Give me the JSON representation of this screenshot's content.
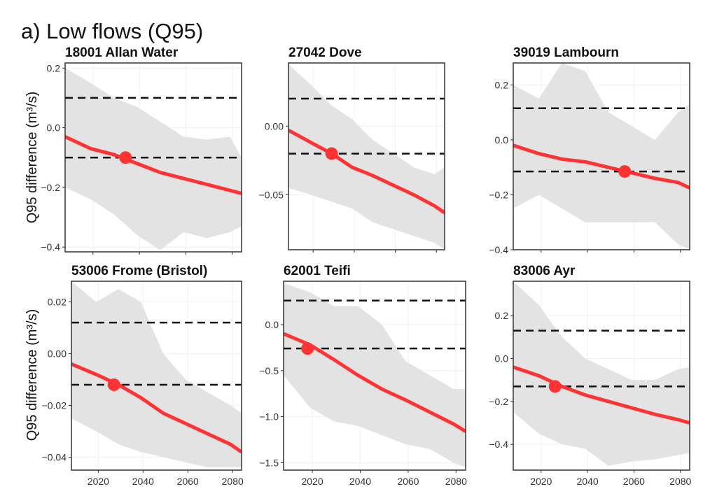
{
  "figure_title": "a) Low flows (Q95)",
  "ylabel": "Q95 difference (m³/s)",
  "colors": {
    "central_line": "#ff3333",
    "band": "#e3e3e3",
    "threshold": "#111111",
    "point": "#ff3333"
  },
  "chart_data": [
    {
      "type": "line",
      "title": "18001 Allan Water",
      "xlim": [
        2008,
        2084
      ],
      "ylim": [
        -0.416,
        0.217
      ],
      "xticks": [
        2020,
        2040,
        2060,
        2080
      ],
      "yticks": [
        0.2,
        0.0,
        -0.2,
        -0.4
      ],
      "ytick_labels": [
        "0.2",
        "0.0",
        "−0.2",
        "−0.4"
      ],
      "show_xtick_labels": false,
      "thresholds": [
        0.1,
        -0.1
      ],
      "x": [
        2008,
        2019,
        2029,
        2039,
        2049,
        2059,
        2069,
        2079,
        2084
      ],
      "central": [
        -0.03,
        -0.07,
        -0.09,
        -0.12,
        -0.15,
        -0.17,
        -0.19,
        -0.21,
        -0.22
      ],
      "band_upper": [
        0.2,
        0.15,
        0.1,
        0.07,
        0.02,
        -0.03,
        -0.04,
        -0.03,
        -0.1
      ],
      "band_lower": [
        -0.2,
        -0.24,
        -0.29,
        -0.36,
        -0.41,
        -0.35,
        -0.37,
        -0.35,
        -0.33
      ],
      "point": {
        "x": 2034,
        "y": -0.1
      }
    },
    {
      "type": "line",
      "title": "27042 Dove",
      "xlim": [
        2008,
        2084
      ],
      "ylim": [
        -0.09,
        0.046
      ],
      "xticks": [
        2020,
        2040,
        2060,
        2080
      ],
      "yticks": [
        0.0,
        -0.05
      ],
      "ytick_labels": [
        "0.00",
        "−0.05"
      ],
      "show_xtick_labels": false,
      "thresholds": [
        0.02,
        -0.02
      ],
      "x": [
        2008,
        2019,
        2029,
        2039,
        2049,
        2059,
        2069,
        2079,
        2084
      ],
      "central": [
        -0.003,
        -0.012,
        -0.02,
        -0.03,
        -0.036,
        -0.043,
        -0.05,
        -0.058,
        -0.063
      ],
      "band_upper": [
        0.045,
        0.03,
        0.015,
        0.005,
        -0.01,
        -0.02,
        -0.03,
        -0.035,
        -0.03
      ],
      "band_lower": [
        -0.045,
        -0.05,
        -0.055,
        -0.06,
        -0.07,
        -0.075,
        -0.08,
        -0.085,
        -0.09
      ],
      "point": {
        "x": 2029,
        "y": -0.02
      }
    },
    {
      "type": "line",
      "title": "39019 Lambourn",
      "xlim": [
        2008,
        2084
      ],
      "ylim": [
        -0.4,
        0.28
      ],
      "xticks": [
        2020,
        2040,
        2060,
        2080
      ],
      "yticks": [
        0.2,
        0.0,
        -0.2,
        -0.4
      ],
      "ytick_labels": [
        "0.2",
        "0.0",
        "−0.2",
        "−0.4"
      ],
      "show_xtick_labels": false,
      "thresholds": [
        0.115,
        -0.115
      ],
      "x": [
        2008,
        2019,
        2029,
        2039,
        2049,
        2059,
        2069,
        2079,
        2084
      ],
      "central": [
        -0.02,
        -0.05,
        -0.07,
        -0.08,
        -0.1,
        -0.12,
        -0.14,
        -0.155,
        -0.175
      ],
      "band_upper": [
        0.2,
        0.15,
        0.28,
        0.25,
        0.1,
        0.05,
        0.0,
        0.1,
        0.13
      ],
      "band_lower": [
        -0.25,
        -0.2,
        -0.25,
        -0.3,
        -0.3,
        -0.3,
        -0.3,
        -0.38,
        -0.4
      ],
      "point": {
        "x": 2056,
        "y": -0.115
      }
    },
    {
      "type": "line",
      "title": "53006 Frome (Bristol)",
      "xlim": [
        2008,
        2084
      ],
      "ylim": [
        -0.045,
        0.028
      ],
      "xticks": [
        2020,
        2040,
        2060,
        2080
      ],
      "yticks": [
        0.02,
        0.0,
        -0.02,
        -0.04
      ],
      "ytick_labels": [
        "0.02",
        "0.00",
        "−0.02",
        "−0.04"
      ],
      "show_xtick_labels": true,
      "thresholds": [
        0.012,
        -0.012
      ],
      "x": [
        2008,
        2019,
        2029,
        2039,
        2049,
        2059,
        2069,
        2079,
        2084
      ],
      "central": [
        -0.004,
        -0.008,
        -0.012,
        -0.017,
        -0.023,
        -0.027,
        -0.031,
        -0.035,
        -0.038
      ],
      "band_upper": [
        0.028,
        0.02,
        0.025,
        0.02,
        0.0,
        -0.01,
        -0.015,
        -0.02,
        -0.023
      ],
      "band_lower": [
        -0.025,
        -0.03,
        -0.035,
        -0.038,
        -0.04,
        -0.042,
        -0.044,
        -0.044,
        -0.044
      ],
      "point": {
        "x": 2027,
        "y": -0.012
      }
    },
    {
      "type": "line",
      "title": "62001 Teifi",
      "xlim": [
        2008,
        2084
      ],
      "ylim": [
        -1.58,
        0.47
      ],
      "xticks": [
        2020,
        2040,
        2060,
        2080
      ],
      "yticks": [
        0.0,
        -0.5,
        -1.0,
        -1.5
      ],
      "ytick_labels": [
        "0.0",
        "−0.5",
        "−1.0",
        "−1.5"
      ],
      "show_xtick_labels": true,
      "thresholds": [
        0.26,
        -0.26
      ],
      "x": [
        2008,
        2019,
        2029,
        2039,
        2049,
        2059,
        2069,
        2079,
        2084
      ],
      "central": [
        -0.1,
        -0.22,
        -0.38,
        -0.55,
        -0.7,
        -0.82,
        -0.95,
        -1.08,
        -1.16
      ],
      "band_upper": [
        0.45,
        0.35,
        0.2,
        0.2,
        0.0,
        -0.4,
        -0.55,
        -0.7,
        -0.7
      ],
      "band_lower": [
        -0.55,
        -0.9,
        -1.05,
        -1.1,
        -1.2,
        -1.3,
        -1.35,
        -1.5,
        -1.55
      ],
      "point": {
        "x": 2018,
        "y": -0.26
      }
    },
    {
      "type": "line",
      "title": "83006 Ayr",
      "xlim": [
        2008,
        2084
      ],
      "ylim": [
        -0.52,
        0.36
      ],
      "xticks": [
        2020,
        2040,
        2060,
        2080
      ],
      "yticks": [
        0.2,
        0.0,
        -0.2,
        -0.4
      ],
      "ytick_labels": [
        "0.2",
        "0.0",
        "−0.2",
        "−0.4"
      ],
      "show_xtick_labels": true,
      "thresholds": [
        0.13,
        -0.13
      ],
      "x": [
        2008,
        2019,
        2029,
        2039,
        2049,
        2059,
        2069,
        2079,
        2084
      ],
      "central": [
        -0.04,
        -0.08,
        -0.13,
        -0.17,
        -0.2,
        -0.23,
        -0.26,
        -0.285,
        -0.3
      ],
      "band_upper": [
        0.36,
        0.25,
        0.1,
        0.0,
        -0.05,
        -0.1,
        -0.1,
        -0.05,
        -0.04
      ],
      "band_lower": [
        -0.25,
        -0.35,
        -0.4,
        -0.42,
        -0.5,
        -0.48,
        -0.47,
        -0.45,
        -0.44
      ],
      "point": {
        "x": 2026,
        "y": -0.13
      }
    }
  ]
}
